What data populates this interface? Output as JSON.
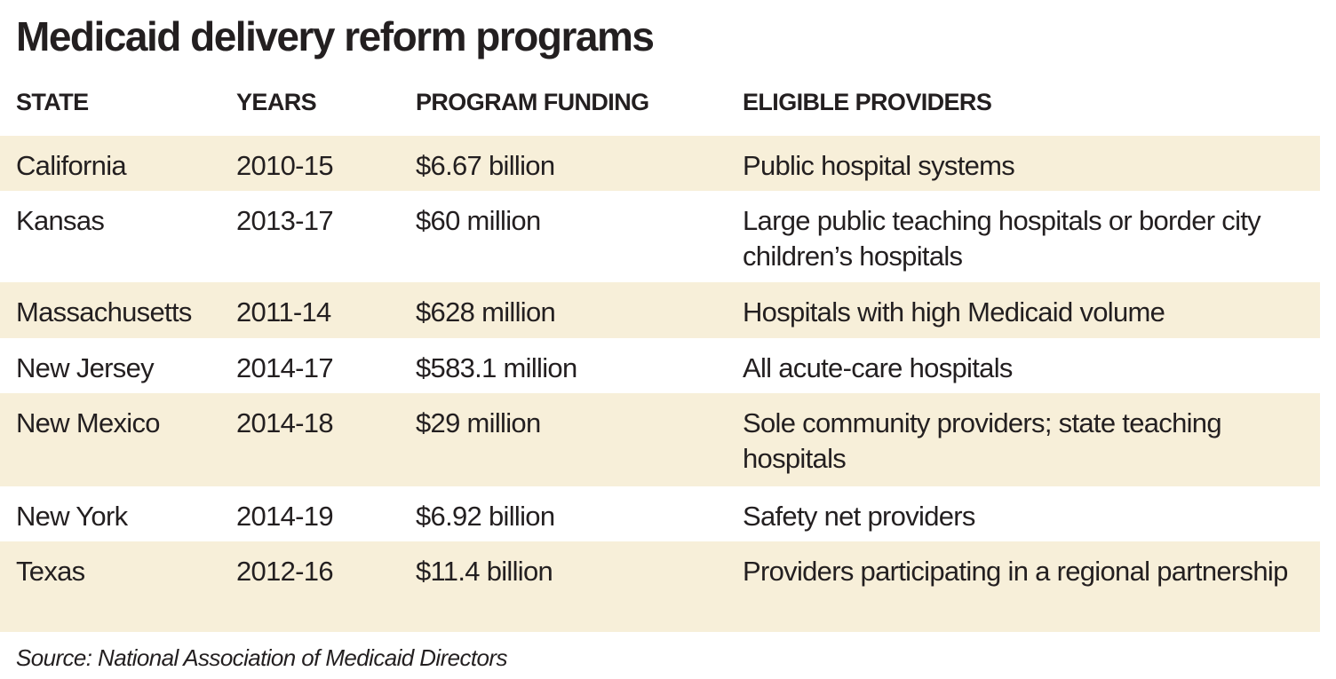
{
  "title": "Medicaid delivery reform programs",
  "columns": [
    "STATE",
    "YEARS",
    "PROGRAM FUNDING",
    "ELIGIBLE PROVIDERS"
  ],
  "rows": [
    [
      "California",
      "2010-15",
      "$6.67 billion",
      "Public hospital systems"
    ],
    [
      "Kansas",
      "2013-17",
      "$60 million",
      "Large public teaching hospitals or border city children’s hospitals"
    ],
    [
      "Massachusetts",
      "2011-14",
      "$628 million",
      "Hospitals with high Medicaid volume"
    ],
    [
      "New Jersey",
      "2014-17",
      "$583.1 million",
      "All acute-care hospitals"
    ],
    [
      "New Mexico",
      "2014-18",
      "$29 million",
      "Sole community providers; state teaching hospitals"
    ],
    [
      "New York",
      "2014-19",
      "$6.92 billion",
      "Safety net providers"
    ],
    [
      "Texas",
      "2012-16",
      "$11.4 billion",
      "Providers participating in a regional partnership"
    ]
  ],
  "source": "Source: National Association of Medicaid Directors",
  "colors": {
    "shade": "#f7efd9",
    "text": "#231f20"
  }
}
